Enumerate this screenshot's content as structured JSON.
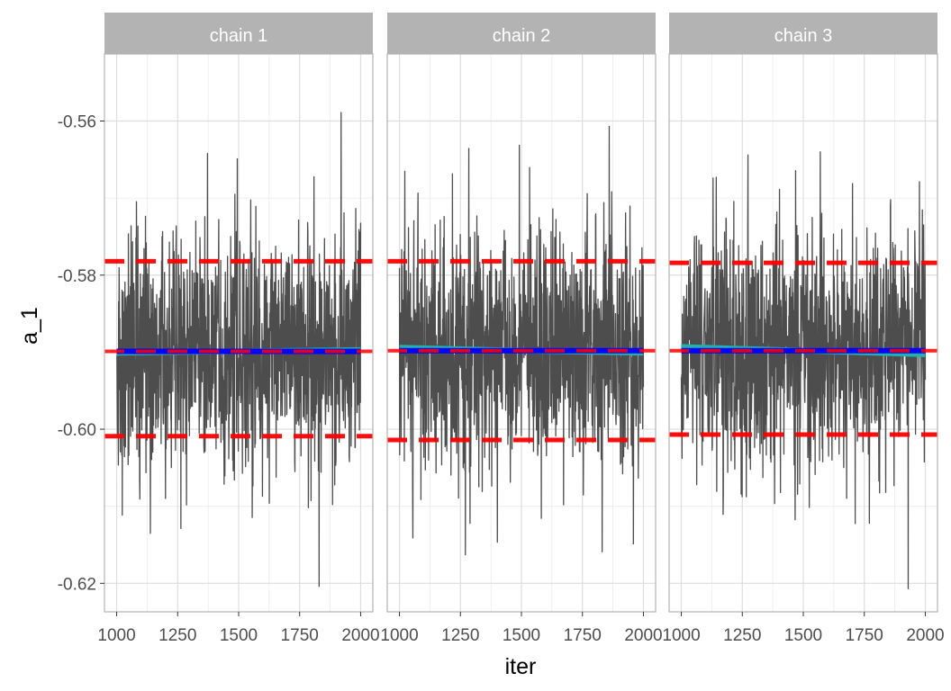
{
  "chart_data": {
    "type": "line",
    "facets": [
      "chain 1",
      "chain 2",
      "chain 3"
    ],
    "xlabel": "iter",
    "ylabel": "a_1",
    "xlim": [
      950,
      2050
    ],
    "ylim": [
      -0.6237,
      -0.5513
    ],
    "x_ticks": [
      1000,
      1250,
      1500,
      1750,
      2000
    ],
    "x_tick_labels": [
      "1000",
      "1250",
      "1500",
      "1750",
      "2000"
    ],
    "y_ticks": [
      -0.62,
      -0.6,
      -0.58,
      -0.56
    ],
    "y_tick_labels": [
      "-0.62",
      "-0.60",
      "-0.58",
      "-0.56"
    ],
    "grid": true,
    "legend": "none",
    "colors": {
      "trace": "#4d4d4d",
      "mean_line": "#0000ff",
      "smooth_line": "#20b2aa",
      "interval_lines": "#ff0000",
      "strip": "#b3b3b3",
      "panel_border": "#b3b3b3",
      "grid": "#dedede"
    },
    "series": [
      {
        "chain": "chain 1",
        "iter_range": [
          1000,
          2000
        ],
        "mean": -0.5899,
        "spread": 0.0078,
        "lower_dashed": -0.6009,
        "upper_dashed": -0.5782,
        "max": -0.5589,
        "max_iter": 1920,
        "min": -0.6204,
        "min_iter": 1830,
        "smooth": [
          [
            1000,
            -0.5901
          ],
          [
            1500,
            -0.5899
          ],
          [
            2000,
            -0.5897
          ]
        ]
      },
      {
        "chain": "chain 2",
        "iter_range": [
          1000,
          2000
        ],
        "mean": -0.5898,
        "spread": 0.0078,
        "lower_dashed": -0.6014,
        "upper_dashed": -0.5782,
        "max": -0.5607,
        "max_iter": 1860,
        "min": -0.6163,
        "min_iter": 1270,
        "smooth": [
          [
            1000,
            -0.5894
          ],
          [
            1500,
            -0.5898
          ],
          [
            2000,
            -0.5901
          ]
        ]
      },
      {
        "chain": "chain 3",
        "iter_range": [
          1000,
          2000
        ],
        "mean": -0.5898,
        "spread": 0.0078,
        "lower_dashed": -0.6007,
        "upper_dashed": -0.5784,
        "max": -0.564,
        "max_iter": 1570,
        "min": -0.6207,
        "min_iter": 1930,
        "smooth": [
          [
            1000,
            -0.5893
          ],
          [
            1500,
            -0.5898
          ],
          [
            2000,
            -0.5903
          ]
        ]
      }
    ]
  }
}
